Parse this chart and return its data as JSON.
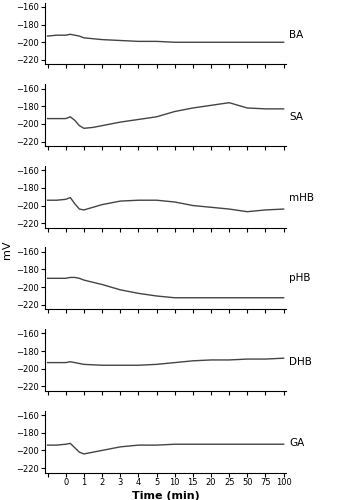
{
  "x_ticks_vals": [
    -1,
    0,
    1,
    2,
    3,
    4,
    5,
    10,
    15,
    20,
    25,
    50,
    75,
    100
  ],
  "x_tick_labels": [
    "",
    "0",
    "1",
    "2",
    "3",
    "4",
    "5",
    "10",
    "15",
    "20",
    "25",
    "50",
    "75",
    "100"
  ],
  "ylim": [
    -225,
    -155
  ],
  "yticks": [
    -220,
    -200,
    -180,
    -160
  ],
  "ylabel": "mV",
  "xlabel": "Time (min)",
  "subplots": [
    {
      "label": "BA",
      "data": {
        "x": [
          -1,
          -0.5,
          0,
          0.25,
          0.5,
          0.75,
          1,
          2,
          3,
          4,
          5,
          10,
          15,
          20,
          25,
          50,
          75,
          100
        ],
        "y": [
          -193,
          -192,
          -192,
          -191,
          -192,
          -193,
          -195,
          -197,
          -198,
          -199,
          -199,
          -200,
          -200,
          -200,
          -200,
          -200,
          -200,
          -200
        ]
      }
    },
    {
      "label": "SA",
      "data": {
        "x": [
          -1,
          -0.5,
          0,
          0.25,
          0.5,
          0.75,
          1,
          1.5,
          2,
          3,
          4,
          5,
          10,
          15,
          20,
          25,
          50,
          75,
          100
        ],
        "y": [
          -194,
          -194,
          -194,
          -192,
          -196,
          -202,
          -205,
          -204,
          -202,
          -198,
          -195,
          -192,
          -186,
          -182,
          -179,
          -176,
          -182,
          -183,
          -183
        ]
      }
    },
    {
      "label": "mHB",
      "data": {
        "x": [
          -1,
          -0.5,
          0,
          0.25,
          0.5,
          0.75,
          1,
          2,
          3,
          4,
          5,
          10,
          15,
          20,
          25,
          50,
          75,
          100
        ],
        "y": [
          -194,
          -194,
          -193,
          -191,
          -198,
          -204,
          -205,
          -199,
          -195,
          -194,
          -194,
          -196,
          -200,
          -202,
          -204,
          -207,
          -205,
          -204
        ]
      }
    },
    {
      "label": "pHB",
      "data": {
        "x": [
          -1,
          -0.5,
          0,
          0.25,
          0.5,
          0.75,
          1,
          2,
          3,
          4,
          5,
          10,
          15,
          20,
          25,
          50,
          75,
          100
        ],
        "y": [
          -190,
          -190,
          -190,
          -189,
          -189,
          -190,
          -192,
          -197,
          -203,
          -207,
          -210,
          -212,
          -212,
          -212,
          -212,
          -212,
          -212,
          -212
        ]
      }
    },
    {
      "label": "DHB",
      "data": {
        "x": [
          -1,
          -0.5,
          0,
          0.25,
          0.5,
          0.75,
          1,
          2,
          3,
          4,
          5,
          10,
          15,
          20,
          25,
          50,
          75,
          100
        ],
        "y": [
          -193,
          -193,
          -193,
          -192,
          -193,
          -194,
          -195,
          -196,
          -196,
          -196,
          -195,
          -193,
          -191,
          -190,
          -190,
          -189,
          -189,
          -188
        ]
      }
    },
    {
      "label": "GA",
      "data": {
        "x": [
          -1,
          -0.5,
          0,
          0.25,
          0.5,
          0.75,
          1,
          2,
          3,
          4,
          5,
          10,
          15,
          20,
          25,
          50,
          75,
          100
        ],
        "y": [
          -194,
          -194,
          -193,
          -192,
          -197,
          -202,
          -204,
          -200,
          -196,
          -194,
          -194,
          -193,
          -193,
          -193,
          -193,
          -193,
          -193,
          -193
        ]
      }
    }
  ],
  "figure_bgcolor": "#ffffff",
  "linecolor": "#444444",
  "linewidth": 1.0,
  "label_fontsize": 7.5,
  "tick_fontsize": 6.0,
  "ylabel_fontsize": 8,
  "xlabel_fontsize": 8
}
